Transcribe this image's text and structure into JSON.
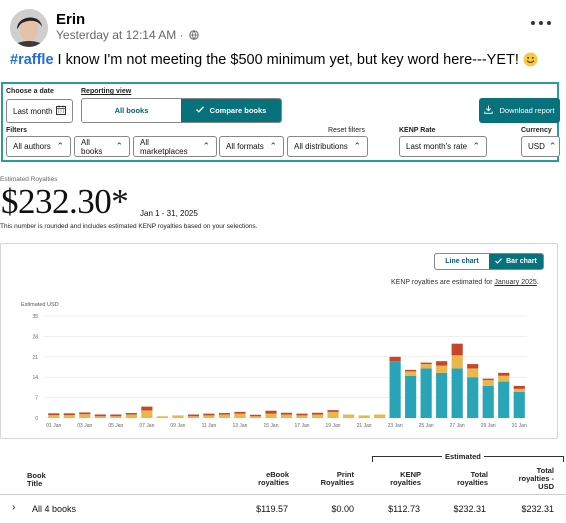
{
  "post": {
    "author": "Erin",
    "timestamp": "Yesterday at 12:14 AM",
    "separator": "·",
    "hashtag": "#raffle",
    "text": " I know I'm not meeting the $500 minimum yet, but key word here---YET!"
  },
  "report": {
    "date_label": "Choose a date",
    "date_value": "Last month",
    "view_label": "Reporting view",
    "view_all": "All books",
    "view_compare": "Compare books",
    "download": "Download report",
    "filters_label": "Filters",
    "reset_filters": "Reset filters",
    "kenp_label": "KENP Rate",
    "currency_label": "Currency",
    "filters": [
      "All authors",
      "All books",
      "All marketplaces",
      "All formats",
      "All distributions"
    ],
    "kenp_value": "Last month's rate",
    "currency_value": "USD",
    "est_label": "Estimated Royalties",
    "amount": "$232.30*",
    "date_range": "Jan 1 - 31, 2025",
    "note": "This number is rounded and includes estimated KENP royalties based on your selections.",
    "chart_toggle_line": "Line chart",
    "chart_toggle_bar": "Bar chart",
    "kenp_note_prefix": "KENP royalties are estimated for ",
    "kenp_note_link": "January 2025",
    "kenp_note_suffix": "."
  },
  "chart_data": {
    "type": "bar",
    "stacked": true,
    "ylabel": "Estimated USD",
    "yticks": [
      0,
      7,
      14,
      21,
      28,
      35
    ],
    "ylim": [
      0,
      35
    ],
    "grid": true,
    "x": [
      "01 Jan",
      "02 Jan",
      "03 Jan",
      "04 Jan",
      "05 Jan",
      "06 Jan",
      "07 Jan",
      "08 Jan",
      "09 Jan",
      "10 Jan",
      "11 Jan",
      "12 Jan",
      "13 Jan",
      "14 Jan",
      "15 Jan",
      "16 Jan",
      "17 Jan",
      "18 Jan",
      "19 Jan",
      "20 Jan",
      "21 Jan",
      "22 Jan",
      "23 Jan",
      "24 Jan",
      "25 Jan",
      "26 Jan",
      "27 Jan",
      "28 Jan",
      "29 Jan",
      "30 Jan",
      "31 Jan"
    ],
    "xtick_labels": [
      "01 Jan",
      "03 Jan",
      "05 Jan",
      "07 Jan",
      "09 Jan",
      "11 Jan",
      "13 Jan",
      "15 Jan",
      "17 Jan",
      "19 Jan",
      "21 Jan",
      "23 Jan",
      "25 Jan",
      "27 Jan",
      "29 Jan",
      "31 Jan"
    ],
    "series": [
      {
        "color": "#2aa5b8",
        "values": [
          0,
          0,
          0,
          0,
          0,
          0,
          0,
          0,
          0,
          0,
          0,
          0,
          0,
          0,
          0,
          0,
          0,
          0,
          0,
          0,
          0,
          0,
          19.5,
          14.5,
          17,
          15.5,
          17,
          14,
          11,
          12.5,
          9
        ]
      },
      {
        "color": "#e8b84e",
        "values": [
          1,
          1,
          1.3,
          0.6,
          0.6,
          1.2,
          2.6,
          0.6,
          0.9,
          0.6,
          0.9,
          1.2,
          1.5,
          0.6,
          1.5,
          1.2,
          0.9,
          1.2,
          2.1,
          1.2,
          0.9,
          1.2,
          0,
          1.5,
          1.5,
          2.5,
          4.5,
          3,
          2,
          2,
          1
        ]
      },
      {
        "color": "#c8442a",
        "values": [
          0.6,
          0.6,
          0.6,
          0.6,
          0.6,
          0.5,
          1.3,
          0,
          0,
          0.6,
          0.6,
          0.5,
          0.6,
          0.5,
          1,
          0.6,
          0.6,
          0.6,
          0.6,
          0,
          0,
          0,
          1.5,
          0.5,
          0.5,
          1.5,
          4,
          1.5,
          0.5,
          1,
          1
        ]
      }
    ]
  },
  "totals": {
    "estimated_label": "Estimated",
    "headers": {
      "book_title": "Book\nTitle",
      "ebook": "eBook\nroyalties",
      "print": "Print\nRoyalties",
      "kenp": "KENP\nroyalties",
      "total": "Total\nroyalties",
      "total_usd": "Total\nroyalties -\nUSD"
    },
    "row": {
      "label": "All 4 books",
      "ebook": "$119.57",
      "print": "$0.00",
      "kenp": "$112.73",
      "total": "$232.31",
      "total_usd": "$232.31"
    }
  }
}
